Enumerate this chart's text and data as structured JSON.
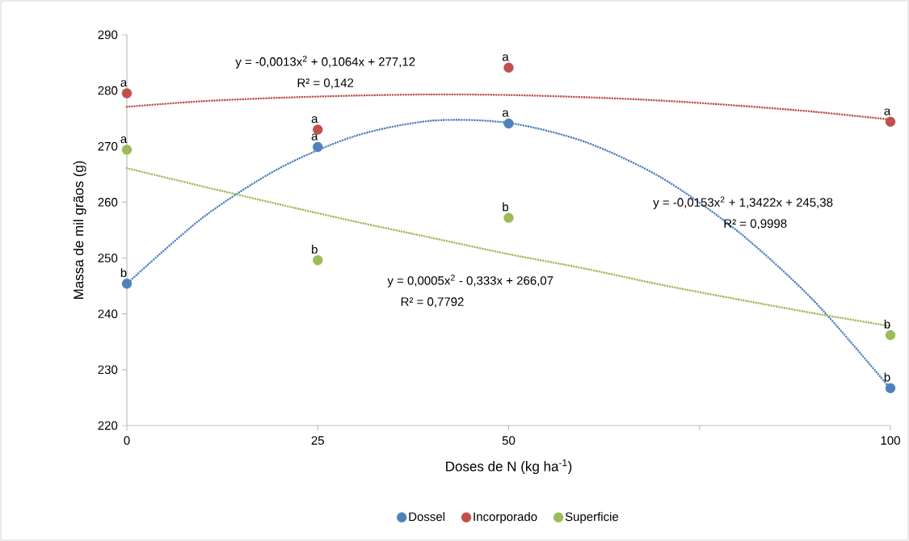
{
  "chart_data": {
    "type": "scatter",
    "xlabel": "Doses de N (kg ha$^{-1}$)",
    "ylabel": "Massa de mil grãos (g)",
    "xlim": [
      0,
      100
    ],
    "xticks": [
      0,
      25,
      50,
      {
        "value": 75,
        "label": null
      },
      100
    ],
    "ylim": [
      220,
      290
    ],
    "yticks": [
      220,
      230,
      240,
      250,
      260,
      270,
      280,
      290
    ],
    "grid": false,
    "legend": "bottom",
    "series": [
      {
        "name": "Dossel",
        "marker": "circle",
        "color": "#4f81bd",
        "x": [
          0,
          25,
          50,
          100
        ],
        "values": [
          245.4,
          269.9,
          274.1,
          226.7
        ],
        "value_labels": [
          "b",
          "a",
          "a",
          "b"
        ]
      },
      {
        "name": "Incorporado",
        "marker": "circle",
        "color": "#c0504d",
        "x": [
          0,
          25,
          50,
          100
        ],
        "values": [
          279.5,
          273.0,
          284.1,
          274.4
        ],
        "value_labels": [
          "a",
          "a",
          "a",
          "a"
        ]
      },
      {
        "name": "Superficie",
        "marker": "circle",
        "color": "#9bbb59",
        "x": [
          0,
          25,
          50,
          100
        ],
        "values": [
          269.4,
          249.6,
          257.2,
          236.2
        ],
        "value_labels": [
          "a",
          "b",
          "b",
          "b"
        ]
      },
      {
        "type": "line",
        "marker": "none",
        "line_style": "dotted",
        "color": "#4f81bd",
        "x": [
          0,
          10,
          20,
          30,
          40,
          50,
          60,
          70,
          80,
          90,
          100
        ],
        "values": [
          245.4,
          257.3,
          266.1,
          271.9,
          274.6,
          274.2,
          270.8,
          264.4,
          254.8,
          242.3,
          226.6
        ]
      },
      {
        "type": "line",
        "marker": "none",
        "line_style": "dotted",
        "color": "#c0504d",
        "x": [
          0,
          10,
          20,
          30,
          40,
          50,
          60,
          70,
          80,
          90,
          100
        ],
        "values": [
          277.1,
          278.1,
          278.7,
          279.1,
          279.3,
          279.2,
          278.8,
          278.2,
          277.3,
          276.2,
          274.8
        ]
      },
      {
        "type": "line",
        "marker": "none",
        "line_style": "dotted",
        "color": "#9bbb59",
        "x": [
          0,
          10,
          20,
          30,
          40,
          50,
          60,
          70,
          80,
          90,
          100
        ],
        "values": [
          266.1,
          262.8,
          259.6,
          256.5,
          253.6,
          250.7,
          248.1,
          245.2,
          242.6,
          240.1,
          237.8
        ]
      }
    ],
    "annotations": [
      "y = -0,0013x$^{2}$ + 0,1064x + 277,12",
      "R² = 0,142",
      "y = 0,0005x$^{2}$ - 0,333x + 266,07",
      "R² = 0,7792",
      "y = -0,0153x$^{2}$ + 1,3422x + 245,38",
      "R² = 0,9998"
    ]
  }
}
